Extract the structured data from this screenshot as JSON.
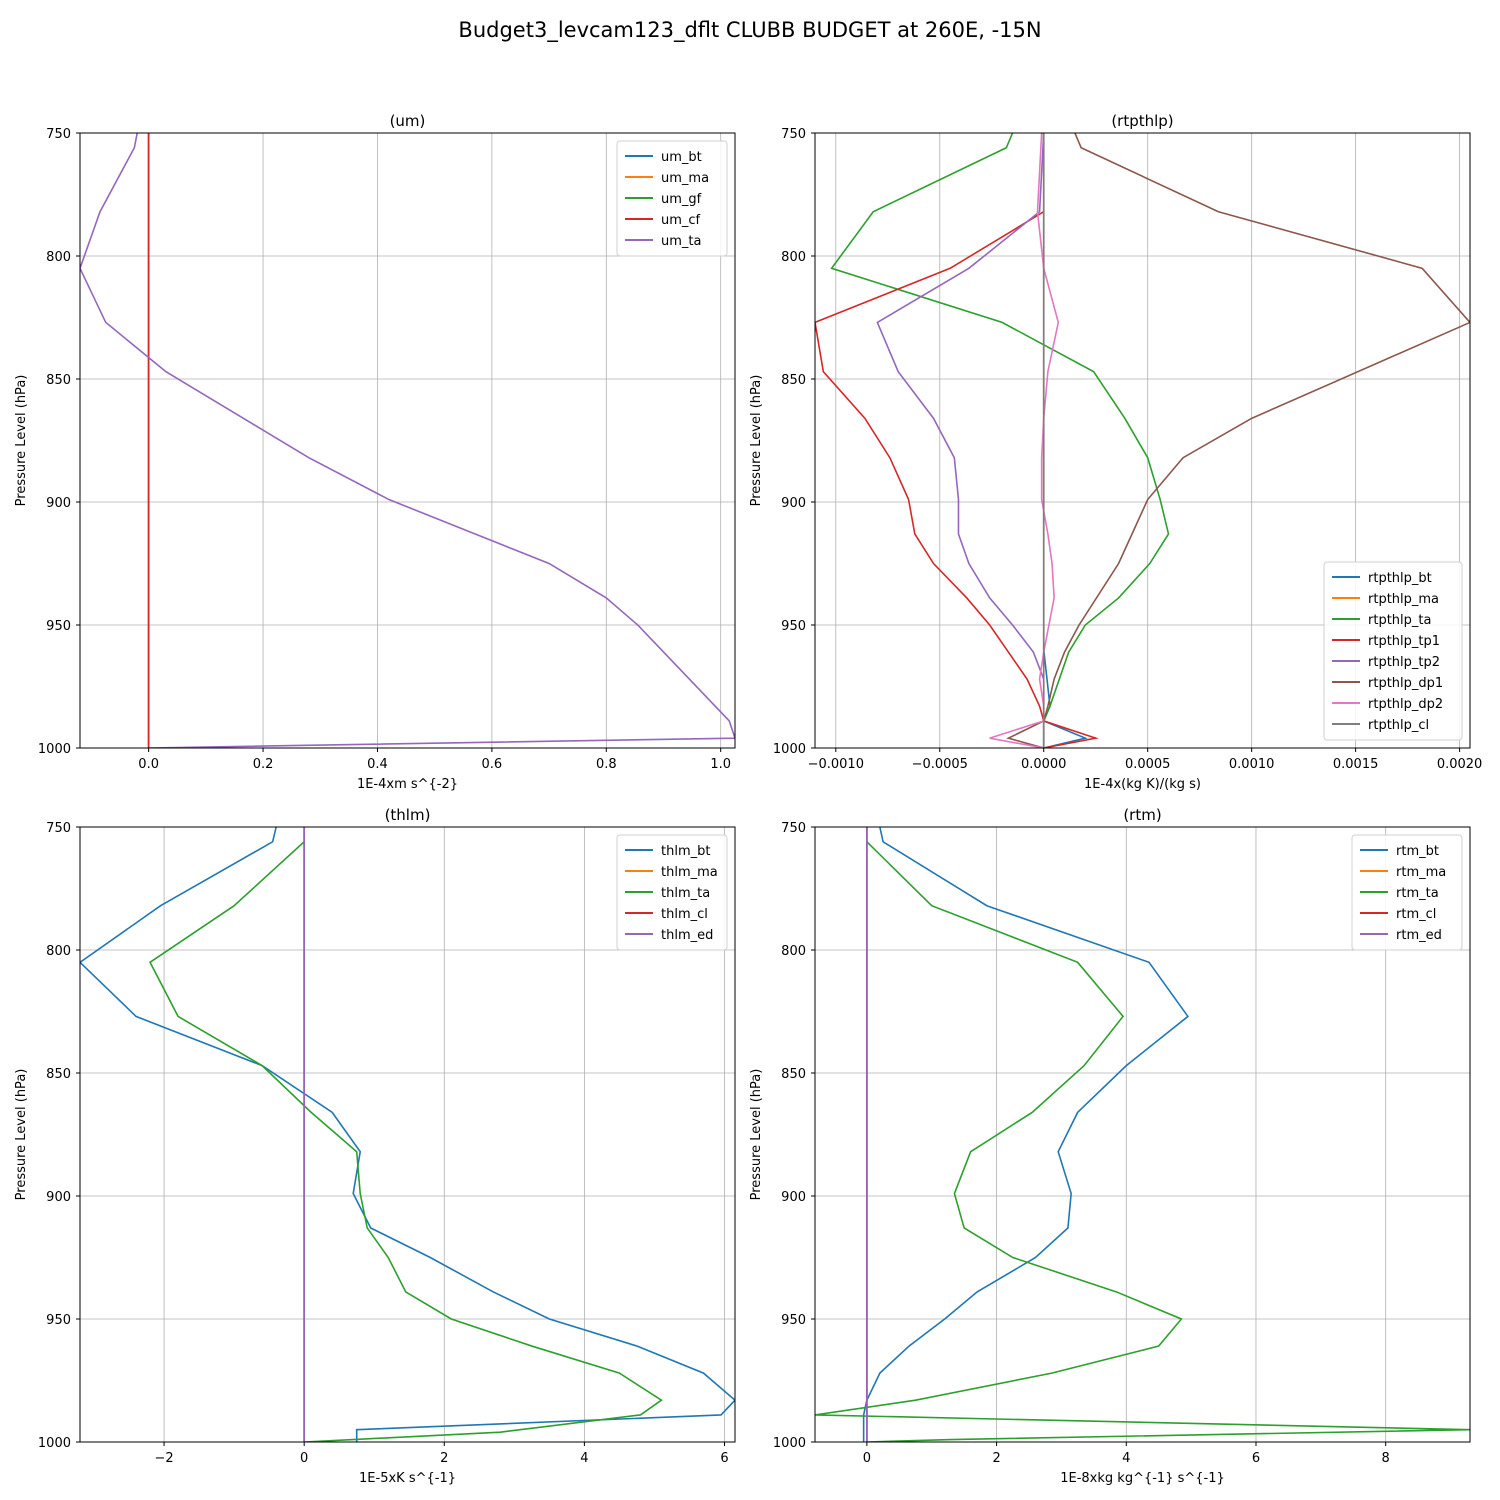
{
  "figure": {
    "suptitle": "Budget3_levcam123_dflt CLUBB BUDGET at 260E, -15N"
  },
  "chart_data": [
    {
      "type": "line",
      "title": "(um)",
      "xlabel": "1E-4xm s^{-2}",
      "ylabel": "Pressure Level (hPa)",
      "xlim": [
        -0.12,
        1.025
      ],
      "ylim": [
        1000,
        750
      ],
      "y_inverted": true,
      "xticks": [
        0.0,
        0.2,
        0.4,
        0.6,
        0.8,
        1.0
      ],
      "xtick_labels": [
        "0.0",
        "0.2",
        "0.4",
        "0.6",
        "0.8",
        "1.0"
      ],
      "yticks": [
        750,
        800,
        850,
        900,
        950,
        1000
      ],
      "ytick_labels": [
        "750",
        "800",
        "850",
        "900",
        "950",
        "1000"
      ],
      "grid": true,
      "legend_position": "upper right",
      "series": [
        {
          "name": "um_bt",
          "color": "#1f77b4",
          "points": [
            [
              0.0,
              750
            ],
            [
              0.0,
              1000
            ]
          ]
        },
        {
          "name": "um_ma",
          "color": "#ff7f0e",
          "points": [
            [
              0.0,
              750
            ],
            [
              0.0,
              1000
            ]
          ]
        },
        {
          "name": "um_gf",
          "color": "#2ca02c",
          "points": [
            [
              0.0,
              750
            ],
            [
              0.0,
              1000
            ]
          ]
        },
        {
          "name": "um_cf",
          "color": "#d62728",
          "points": [
            [
              0.0,
              750
            ],
            [
              0.0,
              1000
            ]
          ]
        },
        {
          "name": "um_ta",
          "color": "#9467bd",
          "points": [
            [
              -0.02,
              750
            ],
            [
              -0.025,
              756
            ],
            [
              -0.085,
              782
            ],
            [
              -0.12,
              805
            ],
            [
              -0.075,
              827
            ],
            [
              0.03,
              847
            ],
            [
              0.28,
              882
            ],
            [
              0.42,
              899
            ],
            [
              0.7,
              925
            ],
            [
              0.8,
              939
            ],
            [
              0.855,
              950
            ],
            [
              1.015,
              989
            ],
            [
              1.025,
              996
            ],
            [
              0.0,
              1000
            ]
          ]
        }
      ]
    },
    {
      "type": "line",
      "title": "(rtpthlp)",
      "xlabel": "1E-4x(kg K)/(kg s)",
      "ylabel": "Pressure Level (hPa)",
      "xlim": [
        -0.0011,
        0.00205
      ],
      "ylim": [
        1000,
        750
      ],
      "y_inverted": true,
      "xticks": [
        -0.001,
        -0.0005,
        0.0,
        0.0005,
        0.001,
        0.0015,
        0.002
      ],
      "xtick_labels": [
        "−0.0010",
        "−0.0005",
        "0.0000",
        "0.0005",
        "0.0010",
        "0.0015",
        "0.0020"
      ],
      "yticks": [
        750,
        800,
        850,
        900,
        950,
        1000
      ],
      "ytick_labels": [
        "750",
        "800",
        "850",
        "900",
        "950",
        "1000"
      ],
      "grid": true,
      "legend_position": "lower right",
      "series": [
        {
          "name": "rtpthlp_bt",
          "color": "#1f77b4",
          "points": [
            [
              0.0,
              750
            ],
            [
              0.0,
              960
            ],
            [
              3e-05,
              983
            ],
            [
              0.0,
              989
            ],
            [
              0.0002,
              996
            ],
            [
              0.0,
              1000
            ]
          ]
        },
        {
          "name": "rtpthlp_ma",
          "color": "#ff7f0e",
          "points": [
            [
              0.0,
              750
            ],
            [
              0.0,
              1000
            ]
          ]
        },
        {
          "name": "rtpthlp_ta",
          "color": "#2ca02c",
          "points": [
            [
              -0.00015,
              750
            ],
            [
              -0.00018,
              756
            ],
            [
              -0.00082,
              782
            ],
            [
              -0.00102,
              805
            ],
            [
              -0.0002,
              827
            ],
            [
              0.00024,
              847
            ],
            [
              0.00039,
              866
            ],
            [
              0.0005,
              882
            ],
            [
              0.00056,
              899
            ],
            [
              0.0006,
              913
            ],
            [
              0.00051,
              925
            ],
            [
              0.00036,
              939
            ],
            [
              0.0002,
              950
            ],
            [
              0.00012,
              961
            ],
            [
              3e-05,
              983
            ],
            [
              0.0,
              989
            ],
            [
              0.0,
              1000
            ]
          ]
        },
        {
          "name": "rtpthlp_tp1",
          "color": "#d62728",
          "points": [
            [
              0.0,
              782
            ],
            [
              -0.00045,
              805
            ],
            [
              -0.0011,
              827
            ],
            [
              -0.00106,
              847
            ],
            [
              -0.00086,
              866
            ],
            [
              -0.00074,
              882
            ],
            [
              -0.00065,
              899
            ],
            [
              -0.00062,
              913
            ],
            [
              -0.00053,
              925
            ],
            [
              -0.00037,
              939
            ],
            [
              -0.00026,
              950
            ],
            [
              -0.00017,
              961
            ],
            [
              -8e-05,
              972
            ],
            [
              -2e-05,
              983
            ],
            [
              0.0,
              989
            ],
            [
              0.00025,
              996
            ],
            [
              0.0,
              1000
            ]
          ]
        },
        {
          "name": "rtpthlp_tp2",
          "color": "#9467bd",
          "points": [
            [
              0.0,
              750
            ],
            [
              -2e-05,
              782
            ],
            [
              -0.00036,
              805
            ],
            [
              -0.0008,
              827
            ],
            [
              -0.0007,
              847
            ],
            [
              -0.00053,
              866
            ],
            [
              -0.00043,
              882
            ],
            [
              -0.00041,
              899
            ],
            [
              -0.00041,
              913
            ],
            [
              -0.00036,
              925
            ],
            [
              -0.00026,
              939
            ],
            [
              -0.00015,
              950
            ],
            [
              -5e-05,
              961
            ],
            [
              0.0,
              972
            ],
            [
              0.0,
              983
            ],
            [
              0.0,
              1000
            ]
          ]
        },
        {
          "name": "rtpthlp_dp1",
          "color": "#8c564b",
          "points": [
            [
              0.00015,
              750
            ],
            [
              0.00018,
              756
            ],
            [
              0.00084,
              782
            ],
            [
              0.00182,
              805
            ],
            [
              0.00205,
              827
            ],
            [
              0.001,
              866
            ],
            [
              0.00067,
              882
            ],
            [
              0.0005,
              899
            ],
            [
              0.00036,
              925
            ],
            [
              0.00017,
              950
            ],
            [
              0.0001,
              961
            ],
            [
              5e-05,
              972
            ],
            [
              2e-05,
              983
            ],
            [
              0.0,
              989
            ],
            [
              -0.00017,
              996
            ],
            [
              0.0,
              1000
            ]
          ]
        },
        {
          "name": "rtpthlp_dp2",
          "color": "#e377c2",
          "points": [
            [
              -1e-05,
              750
            ],
            [
              -3e-05,
              782
            ],
            [
              0.0,
              805
            ],
            [
              7e-05,
              827
            ],
            [
              2e-05,
              847
            ],
            [
              0.0,
              866
            ],
            [
              -1e-05,
              882
            ],
            [
              -1e-05,
              899
            ],
            [
              2e-05,
              913
            ],
            [
              4e-05,
              925
            ],
            [
              5e-05,
              939
            ],
            [
              0.0,
              961
            ],
            [
              -2e-05,
              972
            ],
            [
              0.0,
              983
            ],
            [
              0.0,
              989
            ],
            [
              -0.00026,
              996
            ],
            [
              0.0,
              1000
            ]
          ]
        },
        {
          "name": "rtpthlp_cl",
          "color": "#7f7f7f",
          "points": [
            [
              0.0,
              750
            ],
            [
              0.0,
              1000
            ]
          ]
        }
      ]
    },
    {
      "type": "line",
      "title": "(thlm)",
      "xlabel": "1E-5xK s^{-1}",
      "ylabel": "Pressure Level (hPa)",
      "xlim": [
        -3.2,
        6.15
      ],
      "ylim": [
        1000,
        750
      ],
      "y_inverted": true,
      "xticks": [
        -2,
        0,
        2,
        4,
        6
      ],
      "xtick_labels": [
        "−2",
        "0",
        "2",
        "4",
        "6"
      ],
      "yticks": [
        750,
        800,
        850,
        900,
        950,
        1000
      ],
      "ytick_labels": [
        "750",
        "800",
        "850",
        "900",
        "950",
        "1000"
      ],
      "grid": true,
      "legend_position": "upper right",
      "series": [
        {
          "name": "thlm_bt",
          "color": "#1f77b4",
          "points": [
            [
              -0.4,
              750
            ],
            [
              -0.45,
              756
            ],
            [
              -2.05,
              782
            ],
            [
              -3.2,
              805
            ],
            [
              -2.4,
              827
            ],
            [
              -0.6,
              847
            ],
            [
              0.4,
              866
            ],
            [
              0.8,
              882
            ],
            [
              0.7,
              899
            ],
            [
              0.95,
              913
            ],
            [
              1.8,
              925
            ],
            [
              2.7,
              939
            ],
            [
              3.5,
              950
            ],
            [
              4.75,
              961
            ],
            [
              5.7,
              972
            ],
            [
              6.15,
              983
            ],
            [
              5.95,
              989
            ],
            [
              0.75,
              995
            ],
            [
              0.75,
              1000
            ]
          ]
        },
        {
          "name": "thlm_ma",
          "color": "#ff7f0e",
          "points": [
            [
              0.0,
              750
            ],
            [
              0.0,
              1000
            ]
          ]
        },
        {
          "name": "thlm_ta",
          "color": "#2ca02c",
          "points": [
            [
              0.0,
              756
            ],
            [
              -1.0,
              782
            ],
            [
              -2.2,
              805
            ],
            [
              -1.8,
              827
            ],
            [
              -0.6,
              847
            ],
            [
              0.1,
              866
            ],
            [
              0.75,
              882
            ],
            [
              0.8,
              899
            ],
            [
              0.9,
              913
            ],
            [
              1.2,
              925
            ],
            [
              1.45,
              939
            ],
            [
              2.1,
              950
            ],
            [
              3.25,
              961
            ],
            [
              4.5,
              972
            ],
            [
              5.1,
              983
            ],
            [
              4.8,
              989
            ],
            [
              2.8,
              996
            ],
            [
              0.7,
              999
            ],
            [
              0.0,
              1000
            ]
          ]
        },
        {
          "name": "thlm_cl",
          "color": "#d62728",
          "points": [
            [
              0.0,
              750
            ],
            [
              0.0,
              1000
            ]
          ]
        },
        {
          "name": "thlm_ed",
          "color": "#9467bd",
          "points": [
            [
              0.0,
              750
            ],
            [
              0.0,
              1000
            ]
          ]
        }
      ]
    },
    {
      "type": "line",
      "title": "(rtm)",
      "xlabel": "1E-8xkg kg^{-1} s^{-1}",
      "ylabel": "Pressure Level (hPa)",
      "xlim": [
        -0.8,
        9.3
      ],
      "ylim": [
        1000,
        750
      ],
      "y_inverted": true,
      "xticks": [
        0,
        2,
        4,
        6,
        8
      ],
      "xtick_labels": [
        "0",
        "2",
        "4",
        "6",
        "8"
      ],
      "yticks": [
        750,
        800,
        850,
        900,
        950,
        1000
      ],
      "ytick_labels": [
        "750",
        "800",
        "850",
        "900",
        "950",
        "1000"
      ],
      "grid": true,
      "legend_position": "upper right",
      "series": [
        {
          "name": "rtm_bt",
          "color": "#1f77b4",
          "points": [
            [
              0.2,
              750
            ],
            [
              0.25,
              756
            ],
            [
              1.85,
              782
            ],
            [
              4.35,
              805
            ],
            [
              4.95,
              827
            ],
            [
              4.0,
              847
            ],
            [
              3.25,
              866
            ],
            [
              2.95,
              882
            ],
            [
              3.15,
              899
            ],
            [
              3.1,
              913
            ],
            [
              2.6,
              925
            ],
            [
              1.7,
              939
            ],
            [
              1.2,
              950
            ],
            [
              0.65,
              961
            ],
            [
              0.2,
              972
            ],
            [
              0.0,
              983
            ],
            [
              -0.05,
              989
            ],
            [
              -0.05,
              1000
            ]
          ]
        },
        {
          "name": "rtm_ma",
          "color": "#ff7f0e",
          "points": [
            [
              0.0,
              750
            ],
            [
              0.0,
              1000
            ]
          ]
        },
        {
          "name": "rtm_ta",
          "color": "#2ca02c",
          "points": [
            [
              0.0,
              756
            ],
            [
              1.0,
              782
            ],
            [
              3.25,
              805
            ],
            [
              3.95,
              827
            ],
            [
              3.35,
              847
            ],
            [
              2.55,
              866
            ],
            [
              1.6,
              882
            ],
            [
              1.35,
              899
            ],
            [
              1.5,
              913
            ],
            [
              2.25,
              925
            ],
            [
              3.85,
              939
            ],
            [
              4.85,
              950
            ],
            [
              4.5,
              961
            ],
            [
              2.85,
              972
            ],
            [
              0.75,
              983
            ],
            [
              -0.8,
              989
            ],
            [
              9.3,
              995
            ],
            [
              1.3,
              999
            ],
            [
              0.0,
              1000
            ]
          ]
        },
        {
          "name": "rtm_cl",
          "color": "#d62728",
          "points": [
            [
              0.0,
              750
            ],
            [
              0.0,
              1000
            ]
          ]
        },
        {
          "name": "rtm_ed",
          "color": "#9467bd",
          "points": [
            [
              0.0,
              750
            ],
            [
              0.0,
              1000
            ]
          ]
        }
      ]
    }
  ]
}
